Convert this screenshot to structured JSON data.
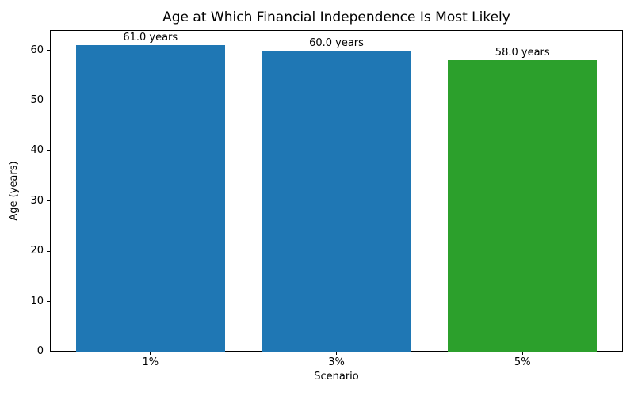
{
  "chart_data": {
    "type": "bar",
    "title": "Age at Which Financial Independence Is Most Likely",
    "xlabel": "Scenario",
    "ylabel": "Age (years)",
    "categories": [
      "1%",
      "3%",
      "5%"
    ],
    "values": [
      61.0,
      60.0,
      58.0
    ],
    "bar_labels": [
      "61.0 years",
      "60.0 years",
      "58.0 years"
    ],
    "bar_colors": [
      "#1f77b4",
      "#1f77b4",
      "#2ca02c"
    ],
    "yticks": [
      0,
      10,
      20,
      30,
      40,
      50,
      60
    ],
    "ylim": [
      0,
      64.05
    ],
    "xlim": [
      -0.54,
      2.54
    ],
    "bar_width": 0.8,
    "grid": false,
    "legend": null,
    "spine_color": "#000000",
    "background_color": "#ffffff"
  }
}
